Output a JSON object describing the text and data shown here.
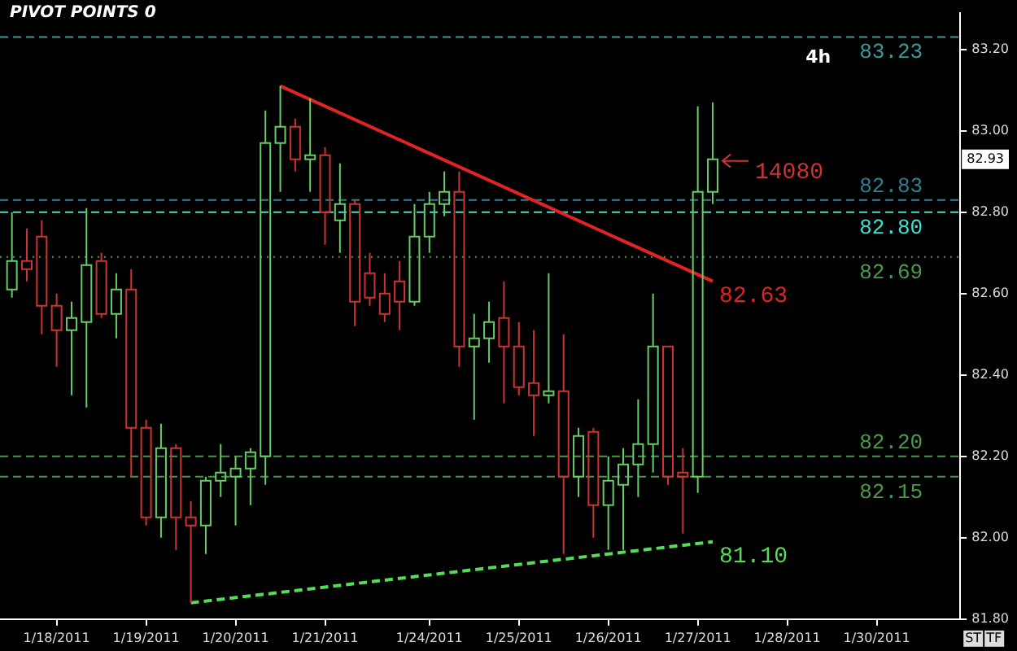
{
  "chart_data": {
    "type": "candlestick",
    "categories": [
      null,
      null,
      null,
      "1/18/2011",
      null,
      null,
      null,
      null,
      null,
      "1/19/2011",
      null,
      null,
      null,
      null,
      null,
      "1/20/2011",
      null,
      null,
      null,
      null,
      null,
      "1/21/2011",
      null,
      null,
      null,
      null,
      null,
      null,
      "1/24/2011",
      null,
      null,
      null,
      null,
      null,
      "1/25/2011",
      null,
      null,
      null,
      null,
      null,
      "1/26/2011",
      null,
      null,
      null,
      null,
      null,
      "1/27/2011",
      null,
      null,
      null,
      null,
      null,
      "1/28/2011",
      null,
      null,
      null,
      null,
      null,
      "1/30/2011",
      null,
      null,
      null,
      null,
      null
    ],
    "ohlc": [
      [
        82.61,
        82.8,
        82.59,
        82.68
      ],
      [
        82.68,
        82.76,
        82.63,
        82.66
      ],
      [
        82.74,
        82.78,
        82.5,
        82.57
      ],
      [
        82.57,
        82.6,
        82.42,
        82.51
      ],
      [
        82.51,
        82.58,
        82.35,
        82.54
      ],
      [
        82.53,
        82.81,
        82.32,
        82.67
      ],
      [
        82.68,
        82.7,
        82.54,
        82.55
      ],
      [
        82.55,
        82.65,
        82.49,
        82.61
      ],
      [
        82.61,
        82.66,
        82.15,
        82.27
      ],
      [
        82.27,
        82.29,
        82.03,
        82.05
      ],
      [
        82.05,
        82.28,
        82.0,
        82.22
      ],
      [
        82.22,
        82.23,
        81.97,
        82.05
      ],
      [
        82.05,
        82.09,
        81.84,
        82.03
      ],
      [
        82.03,
        82.15,
        81.96,
        82.14
      ],
      [
        82.14,
        82.23,
        82.1,
        82.16
      ],
      [
        82.15,
        82.2,
        82.03,
        82.17
      ],
      [
        82.17,
        82.22,
        82.08,
        82.21
      ],
      [
        82.2,
        83.05,
        82.13,
        82.97
      ],
      [
        82.97,
        83.11,
        82.85,
        83.01
      ],
      [
        83.01,
        83.03,
        82.9,
        82.93
      ],
      [
        82.93,
        83.08,
        82.85,
        82.94
      ],
      [
        82.94,
        82.96,
        82.72,
        82.8
      ],
      [
        82.78,
        82.92,
        82.7,
        82.82
      ],
      [
        82.82,
        82.83,
        82.52,
        82.58
      ],
      [
        82.65,
        82.7,
        82.57,
        82.59
      ],
      [
        82.6,
        82.65,
        82.53,
        82.55
      ],
      [
        82.63,
        82.68,
        82.51,
        82.58
      ],
      [
        82.58,
        82.82,
        82.57,
        82.74
      ],
      [
        82.74,
        82.85,
        82.7,
        82.82
      ],
      [
        82.82,
        82.9,
        82.79,
        82.85
      ],
      [
        82.85,
        82.9,
        82.42,
        82.47
      ],
      [
        82.47,
        82.55,
        82.29,
        82.49
      ],
      [
        82.49,
        82.58,
        82.43,
        82.53
      ],
      [
        82.54,
        82.63,
        82.33,
        82.47
      ],
      [
        82.47,
        82.53,
        82.35,
        82.37
      ],
      [
        82.38,
        82.51,
        82.25,
        82.35
      ],
      [
        82.35,
        82.65,
        82.33,
        82.36
      ],
      [
        82.36,
        82.5,
        81.96,
        82.15
      ],
      [
        82.15,
        82.27,
        82.1,
        82.25
      ],
      [
        82.26,
        82.27,
        82.0,
        82.08
      ],
      [
        82.08,
        82.2,
        81.97,
        82.14
      ],
      [
        82.13,
        82.22,
        81.97,
        82.18
      ],
      [
        82.18,
        82.34,
        82.1,
        82.23
      ],
      [
        82.23,
        82.6,
        82.16,
        82.47
      ],
      [
        82.47,
        82.47,
        82.13,
        82.15
      ],
      [
        82.16,
        82.22,
        82.01,
        82.15
      ],
      [
        82.15,
        83.06,
        82.11,
        82.85
      ],
      [
        82.85,
        83.07,
        82.82,
        82.93
      ],
      null,
      null,
      null,
      null,
      null,
      null,
      null,
      null,
      null,
      null,
      null,
      null,
      null,
      null,
      null,
      null
    ],
    "colors": [
      "#66cc66",
      "#cc3333",
      "#cc3333",
      "#cc3333",
      "#66cc66",
      "#66cc66",
      "#cc3333",
      "#66cc66",
      "#cc3333",
      "#cc3333",
      "#66cc66",
      "#cc3333",
      "#cc3333",
      "#66cc66",
      "#66cc66",
      "#66cc66",
      "#66cc66",
      "#66cc66",
      "#66cc66",
      "#cc3333",
      "#66cc66",
      "#cc3333",
      "#66cc66",
      "#cc3333",
      "#cc3333",
      "#cc3333",
      "#cc3333",
      "#66cc66",
      "#66cc66",
      "#66cc66",
      "#cc3333",
      "#66cc66",
      "#66cc66",
      "#cc3333",
      "#cc3333",
      "#cc3333",
      "#66cc66",
      "#cc3333",
      "#66cc66",
      "#cc3333",
      "#66cc66",
      "#66cc66",
      "#66cc66",
      "#66cc66",
      "#cc3333",
      "#cc3333",
      "#66cc66",
      "#66cc66",
      null,
      null,
      null,
      null,
      null,
      null,
      null,
      null,
      null,
      null,
      null,
      null,
      null,
      null,
      null,
      null
    ],
    "series": [
      {
        "type": "line",
        "name": "82.63",
        "color": "#e02424",
        "values": [
          null,
          null,
          null,
          null,
          null,
          null,
          null,
          null,
          null,
          null,
          null,
          null,
          null,
          null,
          null,
          null,
          null,
          null,
          83.11,
          null,
          null,
          null,
          null,
          null,
          null,
          null,
          null,
          null,
          null,
          null,
          null,
          null,
          null,
          null,
          null,
          null,
          null,
          null,
          null,
          null,
          null,
          null,
          null,
          null,
          null,
          null,
          null,
          82.63,
          null,
          null,
          null,
          null,
          null,
          null,
          null,
          null,
          null,
          null,
          null,
          null,
          null,
          null,
          null,
          null
        ],
        "line_style": "solid"
      },
      {
        "type": "line",
        "name": "81.10",
        "color": "#55dd55",
        "values": [
          null,
          null,
          null,
          null,
          null,
          null,
          null,
          null,
          null,
          null,
          null,
          null,
          81.84,
          null,
          null,
          null,
          null,
          null,
          null,
          null,
          null,
          null,
          null,
          null,
          null,
          null,
          null,
          null,
          null,
          null,
          null,
          null,
          null,
          null,
          null,
          null,
          null,
          null,
          null,
          null,
          null,
          null,
          null,
          null,
          null,
          null,
          null,
          81.99,
          null,
          null,
          null,
          null,
          null,
          null,
          null,
          null,
          null,
          null,
          null,
          null,
          null,
          null,
          null,
          null
        ],
        "line_style": "dashed"
      }
    ],
    "ylim": [
      81.8,
      83.29
    ],
    "yticks": [
      {
        "value": 81.8,
        "label": "81.80"
      },
      {
        "value": 82,
        "label": "82.00"
      },
      {
        "value": 82.2,
        "label": "82.20"
      },
      {
        "value": 82.4,
        "label": "82.40"
      },
      {
        "value": 82.6,
        "label": "82.60"
      },
      {
        "value": 82.8,
        "label": "82.80"
      },
      {
        "value": 83,
        "label": "83.00"
      },
      {
        "value": 83.2,
        "label": "83.20"
      }
    ],
    "ref_lines": [
      {
        "axis": "y",
        "value": 83.23,
        "label": "83.23",
        "color": "#3a9a9a",
        "line_style": "dashed"
      },
      {
        "axis": "y",
        "value": 82.83,
        "label": "82.83",
        "color": "#2f7f8f",
        "line_style": "dashed"
      },
      {
        "axis": "y",
        "value": 82.8,
        "label": "82.80",
        "color": "#40e0d0",
        "line_style": "dashed"
      },
      {
        "axis": "y",
        "value": 82.69,
        "label": "82.69",
        "color": "#4a9a4a",
        "line_style": "dotted"
      },
      {
        "axis": "y",
        "value": 82.2,
        "label": "82.20",
        "color": "#4a9a4a",
        "line_style": "dashed"
      },
      {
        "axis": "y",
        "value": 82.15,
        "label": "82.15",
        "color": "#4a9a4a",
        "line_style": "dashed"
      }
    ],
    "annotations": [
      "PIVOT POINTS 0",
      "4h",
      "14080",
      "82.93",
      "ST",
      "TF"
    ],
    "grid": false,
    "legend": false
  }
}
